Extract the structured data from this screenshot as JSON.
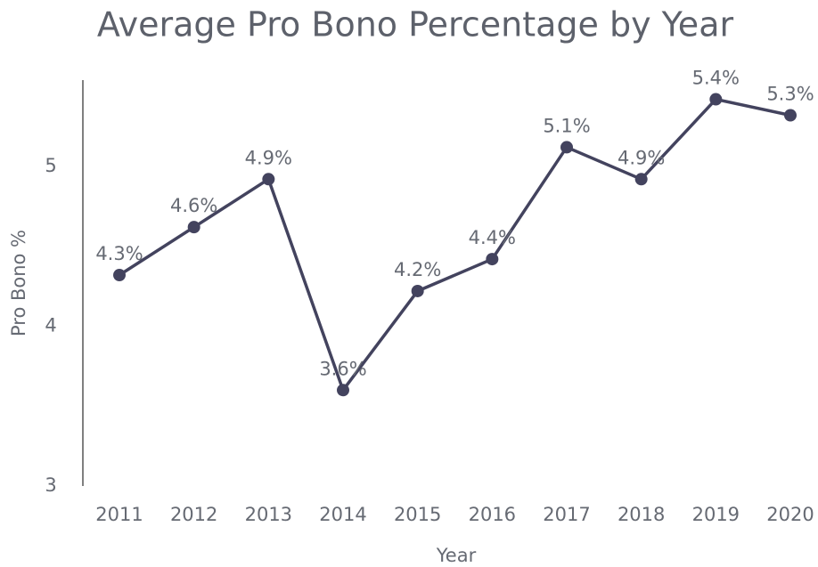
{
  "chart_data": {
    "type": "line",
    "title": "Average Pro Bono Percentage by Year",
    "x_label": "Year",
    "y_label": "Pro Bono %",
    "categories": [
      "2011",
      "2012",
      "2013",
      "2014",
      "2015",
      "2016",
      "2017",
      "2018",
      "2019",
      "2020"
    ],
    "series": [
      {
        "name": "Pro Bono %",
        "color": "#43435e",
        "values": [
          4.32,
          4.62,
          4.92,
          3.6,
          4.22,
          4.42,
          5.12,
          4.92,
          5.42,
          5.32
        ],
        "value_labels": [
          "4.3%",
          "4.6%",
          "4.9%",
          "3.6%",
          "4.2%",
          "4.4%",
          "5.1%",
          "4.9%",
          "5.4%",
          "5.3%"
        ]
      }
    ],
    "ylim": [
      3,
      5.54
    ],
    "yticks": [
      3,
      4,
      5
    ],
    "grid": false
  }
}
